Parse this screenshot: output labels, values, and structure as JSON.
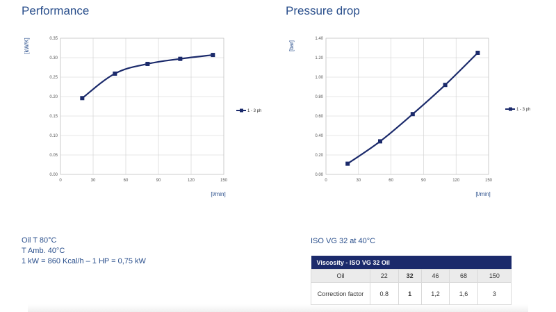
{
  "sections": {
    "performance_title": "Performance",
    "pressure_title": "Pressure drop"
  },
  "chart_data": [
    {
      "type": "line",
      "title": "Performance",
      "ylabel": "[kW/K]",
      "xlabel": "[l/min]",
      "x_ticks": [
        "0",
        "30",
        "60",
        "90",
        "120",
        "150"
      ],
      "y_ticks": [
        "0.00",
        "0.05",
        "0.10",
        "0.15",
        "0.20",
        "0.25",
        "0.30",
        "0.35"
      ],
      "xlim": [
        0,
        150
      ],
      "ylim": [
        0,
        0.35
      ],
      "grid": "vertical and horizontal",
      "legend_position": "right",
      "color": "#1b2a6b",
      "series": [
        {
          "name": "1 - 3 ph",
          "x": [
            20,
            50,
            80,
            110,
            140
          ],
          "values": [
            0.196,
            0.259,
            0.284,
            0.297,
            0.307
          ]
        }
      ]
    },
    {
      "type": "line",
      "title": "Pressure drop",
      "ylabel": "[bar]",
      "xlabel": "[l/min]",
      "x_ticks": [
        "0",
        "30",
        "60",
        "90",
        "120",
        "150"
      ],
      "y_ticks": [
        "0.00",
        "0.20",
        "0.40",
        "0.60",
        "0.80",
        "1.00",
        "1.20",
        "1.40"
      ],
      "xlim": [
        0,
        150
      ],
      "ylim": [
        0,
        1.4
      ],
      "grid": "vertical and horizontal",
      "legend_position": "right",
      "color": "#1b2a6b",
      "series": [
        {
          "name": "1 - 3 ph",
          "x": [
            20,
            50,
            80,
            110,
            140
          ],
          "values": [
            0.11,
            0.34,
            0.62,
            0.92,
            1.25
          ]
        }
      ]
    }
  ],
  "notes_left": {
    "line1": "Oil T 80°C",
    "line2": "T Amb. 40°C",
    "line3": "1 kW = 860 Kcal/h – 1 HP = 0,75 kW"
  },
  "notes_right": {
    "line1": "ISO VG 32 at 40°C"
  },
  "viscosity_table": {
    "header": "Viscosity - ISO VG 32 Oil",
    "oil_label": "Oil",
    "oil_values": [
      "22",
      "32",
      "46",
      "68",
      "150"
    ],
    "cf_label": "Correction factor",
    "cf_values": [
      "0.8",
      "1",
      "1,2",
      "1,6",
      "3"
    ]
  }
}
